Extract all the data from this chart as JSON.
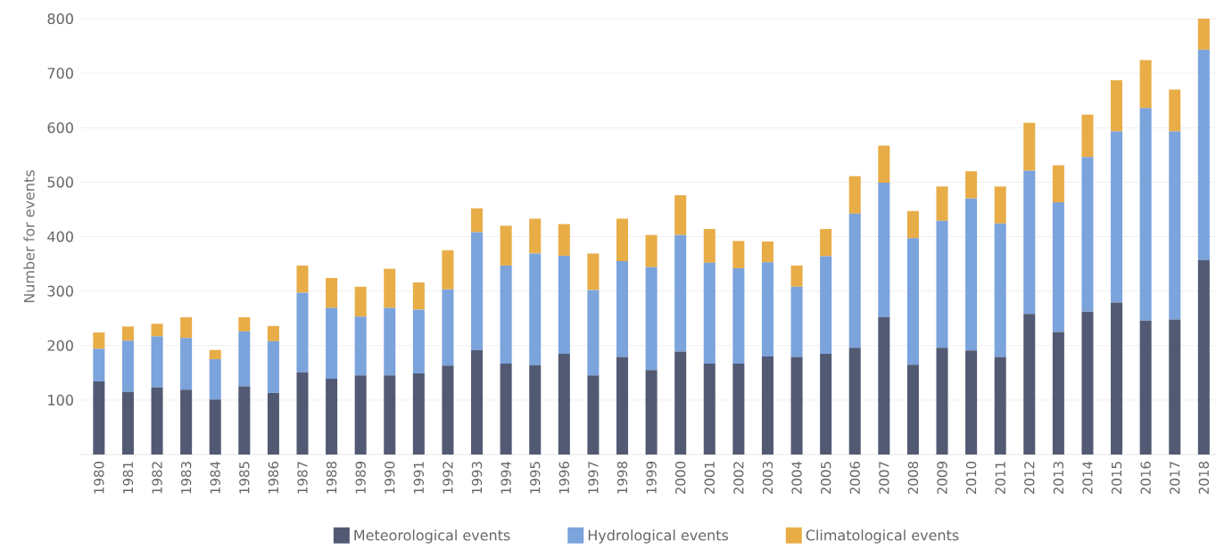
{
  "chart_data": {
    "type": "bar",
    "stacked": true,
    "ylabel": "Number for events",
    "categories": [
      "1980",
      "1981",
      "1982",
      "1983",
      "1984",
      "1985",
      "1986",
      "1987",
      "1988",
      "1989",
      "1990",
      "1991",
      "1992",
      "1993",
      "1994",
      "1995",
      "1996",
      "1997",
      "1998",
      "1999",
      "2000",
      "2001",
      "2002",
      "2003",
      "2004",
      "2005",
      "2006",
      "2007",
      "2008",
      "2009",
      "2010",
      "2011",
      "2012",
      "2013",
      "2014",
      "2015",
      "2016",
      "2017",
      "2018"
    ],
    "series": [
      {
        "name": "Meteorological events",
        "color": "#525a73",
        "values": [
          134,
          115,
          123,
          119,
          101,
          125,
          113,
          151,
          139,
          145,
          145,
          149,
          163,
          192,
          167,
          164,
          185,
          145,
          179,
          155,
          189,
          167,
          167,
          180,
          179,
          185,
          196,
          252,
          165,
          196,
          191,
          179,
          258,
          225,
          262,
          279,
          246,
          248,
          357
        ]
      },
      {
        "name": "Hydrological events",
        "color": "#7ba3dc",
        "values": [
          60,
          94,
          94,
          95,
          74,
          101,
          95,
          146,
          130,
          108,
          124,
          117,
          140,
          216,
          180,
          205,
          180,
          157,
          176,
          189,
          214,
          185,
          175,
          173,
          129,
          179,
          246,
          247,
          232,
          233,
          279,
          245,
          263,
          238,
          284,
          314,
          390,
          345,
          386
        ]
      },
      {
        "name": "Climatological events",
        "color": "#e8ad47",
        "values": [
          30,
          26,
          23,
          38,
          17,
          26,
          28,
          50,
          55,
          55,
          72,
          50,
          72,
          44,
          73,
          64,
          58,
          67,
          78,
          59,
          73,
          62,
          50,
          38,
          39,
          50,
          69,
          68,
          50,
          63,
          50,
          68,
          88,
          68,
          78,
          94,
          88,
          77,
          57
        ]
      }
    ],
    "ylim": [
      0,
      800
    ],
    "yticks": [
      100,
      200,
      300,
      400,
      500,
      600,
      700,
      800
    ],
    "grid": "y",
    "legend": "bottom"
  }
}
